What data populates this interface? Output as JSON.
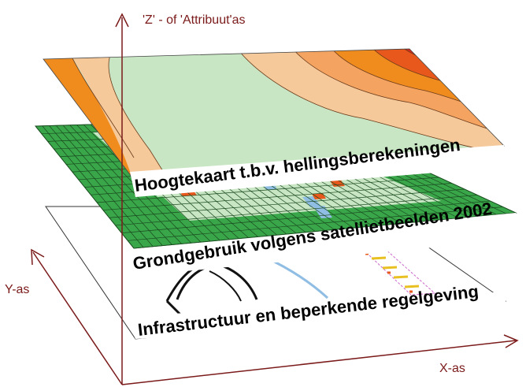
{
  "axes": {
    "z_label": "'Z' -  of 'Attribuut'as",
    "y_label": "Y-as",
    "x_label": "X-as",
    "color": "#7b1a1a"
  },
  "layers": [
    {
      "id": "elevation",
      "label": "Hoogtekaart t.b.v. hellingsberekeningen"
    },
    {
      "id": "landuse",
      "label": "Grondgebruik volgens satellietbeelden 2002"
    },
    {
      "id": "infrastructure",
      "label": "Infrastructuur en beperkende regelgeving"
    }
  ],
  "colors": {
    "elevation_bands": [
      "#f08c1e",
      "#f5c99a",
      "#c8e6c3",
      "#f5c99a",
      "#f4a460",
      "#f08c1e",
      "#e8581c",
      "#d42a1e"
    ],
    "landuse_green": "#3aa64a",
    "landuse_light": "#c8e6c3",
    "landuse_blue": "#8fbde3",
    "landuse_orange": "#e8581c"
  }
}
